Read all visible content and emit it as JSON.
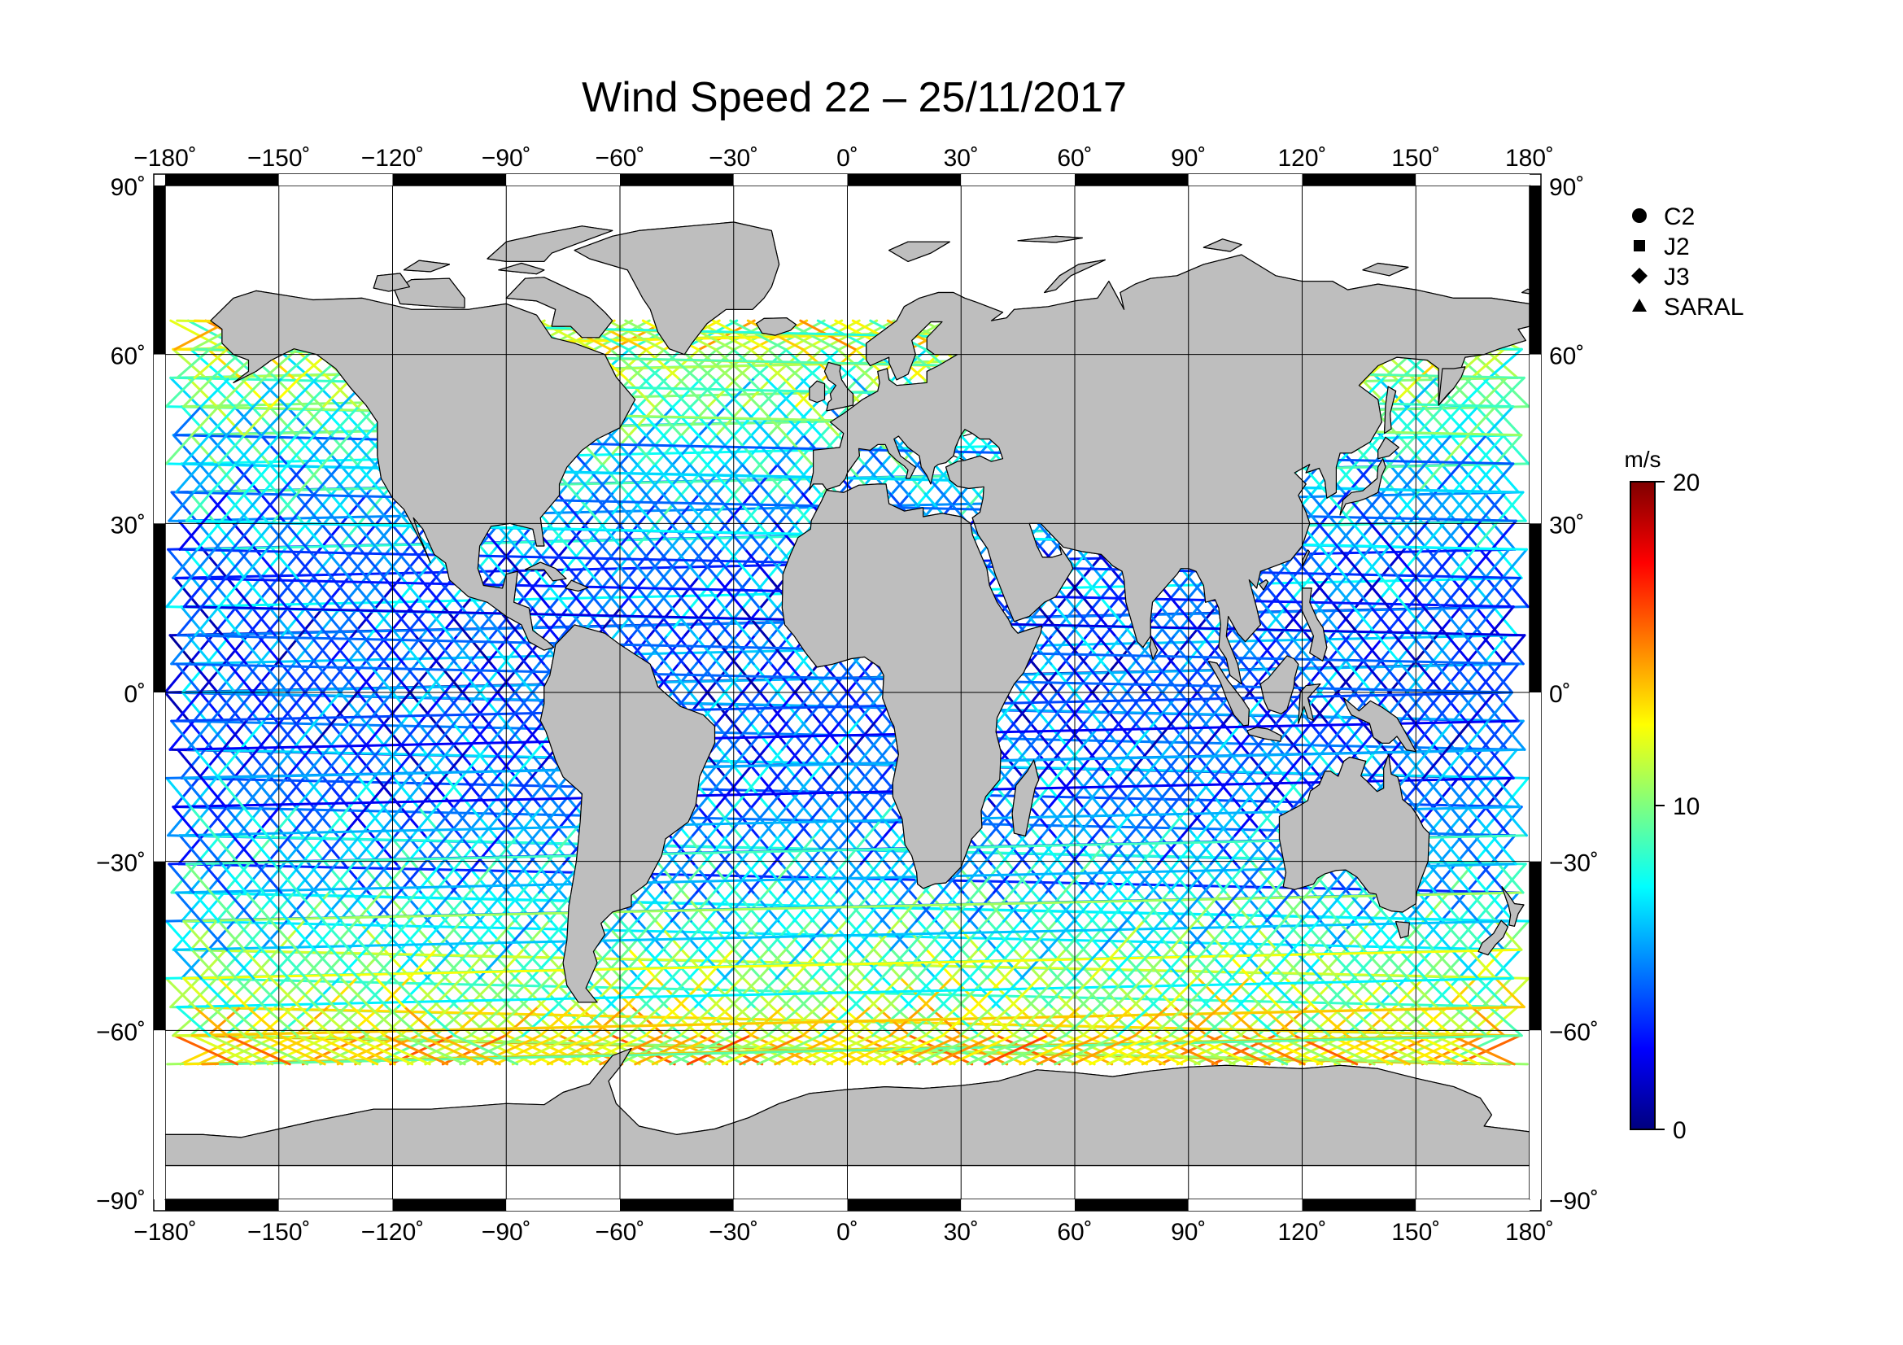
{
  "title": "Wind Speed 22 – 25/11/2017",
  "map": {
    "lon_ticks": [
      "−180˚",
      "−150˚",
      "−120˚",
      "−90˚",
      "−60˚",
      "−30˚",
      "0˚",
      "30˚",
      "60˚",
      "90˚",
      "120˚",
      "150˚",
      "180˚"
    ],
    "lat_ticks_left": [
      "90˚",
      "60˚",
      "30˚",
      "0˚",
      "−30˚",
      "−60˚",
      "−90˚"
    ],
    "lat_ticks_right": [
      "90˚",
      "60˚",
      "30˚",
      "0˚",
      "−30˚",
      "−60˚",
      "−90˚"
    ],
    "lon_range": [
      -180,
      180
    ],
    "lat_range": [
      -90,
      90
    ],
    "grid": true,
    "land_color": "#bebebe",
    "ocean_color": "#ffffff"
  },
  "legend": {
    "items": [
      {
        "label": "C2",
        "marker": "circle"
      },
      {
        "label": "J2",
        "marker": "square"
      },
      {
        "label": "J3",
        "marker": "diamond"
      },
      {
        "label": "SARAL",
        "marker": "triangle"
      }
    ]
  },
  "colorbar": {
    "unit": "m/s",
    "tick_labels": [
      "20",
      "10",
      "0"
    ],
    "range": [
      0,
      20
    ],
    "colormap": [
      "#00007f",
      "#0000ff",
      "#007fff",
      "#00ffff",
      "#7fff7f",
      "#ffff00",
      "#ff7f00",
      "#ff0000",
      "#7f0000"
    ]
  },
  "chart_data": {
    "type": "scatter",
    "title": "Wind Speed 22 – 25/11/2017",
    "xlabel": "",
    "ylabel": "",
    "xlim": [
      -180,
      180
    ],
    "ylim": [
      -90,
      90
    ],
    "color_variable": "wind speed",
    "color_unit": "m/s",
    "color_range": [
      0,
      20
    ],
    "series": [
      {
        "name": "C2",
        "marker": "circle"
      },
      {
        "name": "J2",
        "marker": "square"
      },
      {
        "name": "J3",
        "marker": "diamond"
      },
      {
        "name": "SARAL",
        "marker": "triangle"
      }
    ]
  }
}
